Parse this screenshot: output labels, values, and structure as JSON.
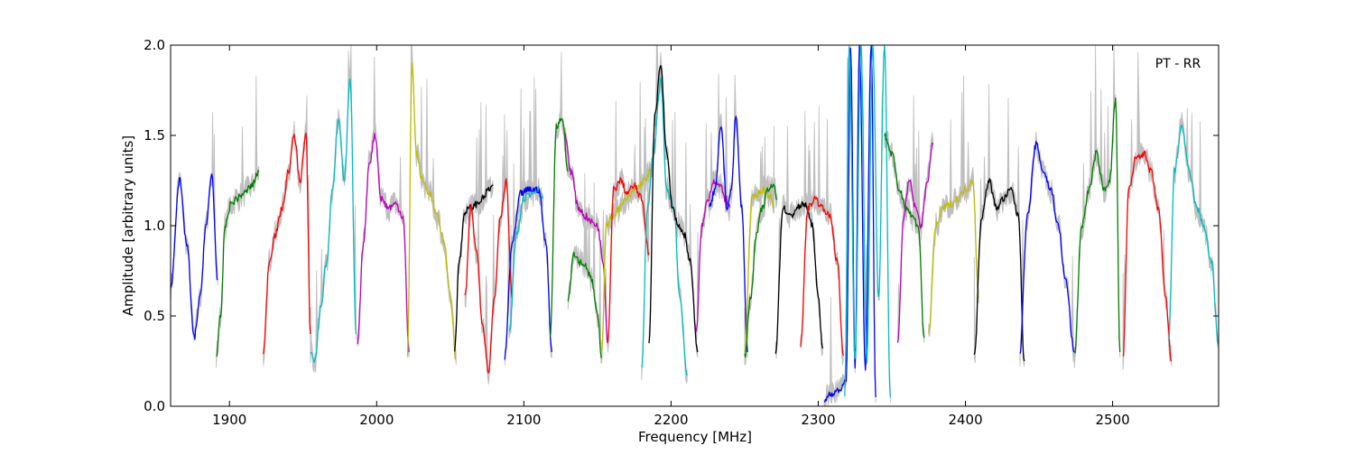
{
  "chart_data": {
    "type": "line",
    "title": "",
    "annotation": "PT - RR",
    "xlabel": "Frequency [MHz]",
    "ylabel": "Amplitude [arbitrary units]",
    "xlim": [
      1860,
      2572
    ],
    "ylim": [
      0.0,
      2.0
    ],
    "x_ticks": [
      1900,
      2000,
      2100,
      2200,
      2300,
      2400,
      2500
    ],
    "y_ticks": [
      0.0,
      0.5,
      1.0,
      1.5,
      2.0
    ],
    "x_tick_labels": [
      "1900",
      "2000",
      "2100",
      "2200",
      "2300",
      "2400",
      "2500"
    ],
    "y_tick_labels": [
      "0.0",
      "0.5",
      "1.0",
      "1.5",
      "2.0"
    ],
    "grid": false,
    "background_envelope_color": "#bfbfbf",
    "series": [
      {
        "color": "#0000ff",
        "x": [
          1860,
          1866,
          1871,
          1876,
          1880,
          1884,
          1888,
          1892
        ],
        "y": [
          0.65,
          1.25,
          0.9,
          0.38,
          0.6,
          1.0,
          1.28,
          0.7
        ]
      },
      {
        "color": "#008000",
        "x": [
          1891,
          1894,
          1897,
          1901,
          1905,
          1910,
          1915,
          1920
        ],
        "y": [
          0.27,
          0.5,
          1.0,
          1.12,
          1.15,
          1.18,
          1.22,
          1.3
        ]
      },
      {
        "color": "#ff0000",
        "x": [
          1923,
          1927,
          1931,
          1936,
          1940,
          1944,
          1948,
          1952,
          1955
        ],
        "y": [
          0.3,
          0.8,
          0.95,
          1.1,
          1.3,
          1.5,
          1.25,
          1.5,
          0.4
        ]
      },
      {
        "color": "#00bfbf",
        "x": [
          1955,
          1958,
          1962,
          1966,
          1970,
          1974,
          1978,
          1982,
          1986
        ],
        "y": [
          0.3,
          0.25,
          0.55,
          0.8,
          1.2,
          1.6,
          1.25,
          1.8,
          0.4
        ]
      },
      {
        "color": "#bf00bf",
        "x": [
          1987,
          1991,
          1995,
          1999,
          2003,
          2008,
          2013,
          2018,
          2022
        ],
        "y": [
          0.35,
          0.9,
          1.35,
          1.5,
          1.15,
          1.1,
          1.12,
          1.05,
          0.3
        ]
      },
      {
        "color": "#bfbf00",
        "x": [
          2021,
          2024,
          2027,
          2031,
          2036,
          2041,
          2046,
          2050,
          2054
        ],
        "y": [
          0.28,
          1.9,
          1.4,
          1.25,
          1.18,
          1.05,
          0.9,
          0.6,
          0.26
        ]
      },
      {
        "color": "#000000",
        "x": [
          2053,
          2056,
          2060,
          2064,
          2068,
          2072,
          2076,
          2079
        ],
        "y": [
          0.32,
          0.8,
          1.08,
          1.1,
          1.12,
          1.15,
          1.2,
          1.22
        ]
      },
      {
        "color": "#ff0000",
        "x": [
          2060,
          2064,
          2068,
          2072,
          2076,
          2080,
          2084,
          2088,
          2092
        ],
        "y": [
          0.6,
          1.1,
          0.85,
          0.45,
          0.2,
          0.6,
          1.05,
          1.25,
          0.6
        ]
      },
      {
        "color": "#00bfbf",
        "x": [
          2090,
          2095,
          2100,
          2105,
          2110,
          2113
        ],
        "y": [
          0.4,
          0.95,
          1.15,
          1.18,
          1.2,
          1.15
        ]
      },
      {
        "color": "#0000ff",
        "x": [
          2087,
          2092,
          2098,
          2104,
          2110,
          2115,
          2119
        ],
        "y": [
          0.27,
          0.9,
          1.18,
          1.2,
          1.2,
          0.9,
          0.3
        ]
      },
      {
        "color": "#008000",
        "x": [
          2118,
          2122,
          2126,
          2130
        ],
        "y": [
          0.4,
          1.55,
          1.6,
          1.3
        ]
      },
      {
        "color": "#bf00bf",
        "x": [
          2128,
          2132,
          2137,
          2142,
          2146,
          2150,
          2154,
          2157
        ],
        "y": [
          1.5,
          1.3,
          1.1,
          1.05,
          1.02,
          1.0,
          0.8,
          0.35
        ]
      },
      {
        "color": "#008000",
        "x": [
          2130,
          2134,
          2138,
          2142,
          2146,
          2150,
          2153
        ],
        "y": [
          0.6,
          0.85,
          0.8,
          0.78,
          0.7,
          0.5,
          0.27
        ]
      },
      {
        "color": "#bfbf00",
        "x": [
          2153,
          2156,
          2160,
          2165,
          2170,
          2176,
          2182,
          2186
        ],
        "y": [
          0.32,
          1.0,
          1.05,
          1.1,
          1.15,
          1.2,
          1.25,
          1.3
        ]
      },
      {
        "color": "#ff0000",
        "x": [
          2157,
          2161,
          2166,
          2170,
          2175,
          2180,
          2185
        ],
        "y": [
          0.35,
          1.2,
          1.25,
          1.18,
          1.22,
          1.15,
          0.85
        ]
      },
      {
        "color": "#00bfbf",
        "x": [
          2180,
          2184,
          2188,
          2193,
          2197,
          2202,
          2206,
          2211
        ],
        "y": [
          0.2,
          1.1,
          1.4,
          1.8,
          1.2,
          1.1,
          0.6,
          0.17
        ]
      },
      {
        "color": "#000000",
        "x": [
          2185,
          2189,
          2193,
          2197,
          2201,
          2205,
          2209,
          2213,
          2218
        ],
        "y": [
          0.35,
          1.6,
          1.9,
          1.4,
          1.1,
          1.0,
          0.95,
          0.8,
          0.3
        ]
      },
      {
        "color": "#bf00bf",
        "x": [
          2217,
          2221,
          2225,
          2229,
          2233,
          2237,
          2240
        ],
        "y": [
          0.4,
          1.0,
          1.15,
          1.25,
          1.22,
          1.15,
          1.1
        ]
      },
      {
        "color": "#0000ff",
        "x": [
          2226,
          2230,
          2234,
          2238,
          2241,
          2244,
          2248,
          2252
        ],
        "y": [
          1.1,
          1.2,
          1.55,
          1.1,
          1.2,
          1.6,
          1.1,
          0.3
        ]
      },
      {
        "color": "#bfbf00",
        "x": [
          2250,
          2255,
          2259,
          2263,
          2267,
          2270
        ],
        "y": [
          0.3,
          1.15,
          1.18,
          1.2,
          1.17,
          1.1
        ]
      },
      {
        "color": "#008000",
        "x": [
          2250,
          2254,
          2258,
          2262,
          2266,
          2270,
          2272
        ],
        "y": [
          0.27,
          0.6,
          0.95,
          1.1,
          1.2,
          1.22,
          1.15
        ]
      },
      {
        "color": "#000000",
        "x": [
          2271,
          2276,
          2281,
          2286,
          2291,
          2296,
          2300,
          2303
        ],
        "y": [
          0.3,
          1.1,
          1.05,
          1.1,
          1.12,
          1.0,
          0.6,
          0.32
        ]
      },
      {
        "color": "#ff0000",
        "x": [
          2288,
          2293,
          2298,
          2303,
          2308,
          2313,
          2317
        ],
        "y": [
          0.35,
          1.1,
          1.15,
          1.1,
          1.05,
          0.8,
          0.28
        ]
      },
      {
        "color": "#0000ff",
        "x": [
          2304,
          2308,
          2312,
          2316,
          2319,
          2322,
          2325,
          2328,
          2332,
          2336,
          2339
        ],
        "y": [
          0.03,
          0.07,
          0.08,
          0.1,
          0.15,
          2.0,
          0.2,
          2.0,
          0.2,
          2.0,
          0.05
        ]
      },
      {
        "color": "#00bfbf",
        "x": [
          2318,
          2321,
          2325,
          2329,
          2333,
          2337,
          2341,
          2345,
          2349
        ],
        "y": [
          0.05,
          2.0,
          0.25,
          2.0,
          0.25,
          2.0,
          0.6,
          2.0,
          0.05
        ]
      },
      {
        "color": "#008000",
        "x": [
          2345,
          2350,
          2355,
          2360,
          2364,
          2368,
          2372
        ],
        "y": [
          1.5,
          1.4,
          1.2,
          1.1,
          1.05,
          1.0,
          0.38
        ]
      },
      {
        "color": "#bf00bf",
        "x": [
          2354,
          2358,
          2362,
          2366,
          2370,
          2374,
          2378
        ],
        "y": [
          0.35,
          1.05,
          1.25,
          1.1,
          1.0,
          1.25,
          1.45
        ]
      },
      {
        "color": "#bfbf00",
        "x": [
          2375,
          2380,
          2385,
          2390,
          2395,
          2400,
          2405,
          2409
        ],
        "y": [
          0.4,
          1.0,
          1.1,
          1.12,
          1.15,
          1.2,
          1.25,
          0.6
        ]
      },
      {
        "color": "#000000",
        "x": [
          2406,
          2411,
          2416,
          2421,
          2426,
          2431,
          2436,
          2440
        ],
        "y": [
          0.27,
          1.05,
          1.25,
          1.1,
          1.15,
          1.2,
          1.05,
          0.25
        ]
      },
      {
        "color": "#0000ff",
        "x": [
          2437,
          2442,
          2448,
          2453,
          2458,
          2463,
          2468,
          2474
        ],
        "y": [
          0.3,
          1.05,
          1.45,
          1.3,
          1.2,
          1.0,
          0.7,
          0.3
        ]
      },
      {
        "color": "#008000",
        "x": [
          2474,
          2479,
          2484,
          2489,
          2494,
          2498,
          2502,
          2505
        ],
        "y": [
          0.28,
          1.0,
          1.2,
          1.4,
          1.2,
          1.25,
          1.7,
          0.3
        ]
      },
      {
        "color": "#ff0000",
        "x": [
          2507,
          2511,
          2516,
          2521,
          2526,
          2531,
          2536,
          2540
        ],
        "y": [
          0.26,
          1.2,
          1.38,
          1.4,
          1.3,
          1.1,
          0.6,
          0.25
        ]
      },
      {
        "color": "#00bfbf",
        "x": [
          2538,
          2542,
          2547,
          2552,
          2557,
          2562,
          2567,
          2572
        ],
        "y": [
          0.35,
          1.3,
          1.55,
          1.3,
          1.1,
          1.0,
          0.8,
          0.35
        ]
      }
    ]
  }
}
